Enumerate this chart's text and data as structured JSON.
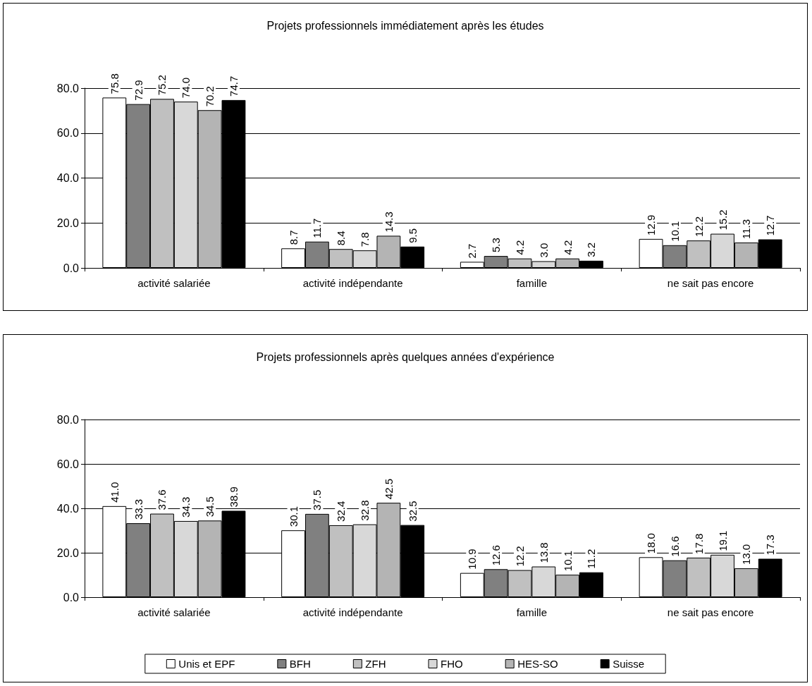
{
  "chart_data": [
    {
      "type": "bar",
      "title": "Projets professionnels immédiatement après les études",
      "categories": [
        "activité salariée",
        "activité indépendante",
        "famille",
        "ne sait pas encore"
      ],
      "ylim": [
        0,
        80
      ],
      "yticks": [
        {
          "value": 0,
          "label": "0.0"
        },
        {
          "value": 20,
          "label": "20.0"
        },
        {
          "value": 40,
          "label": "40.0"
        },
        {
          "value": 60,
          "label": "60.0"
        },
        {
          "value": 80,
          "label": "80.0"
        }
      ],
      "grid": "y",
      "legend": false,
      "series": [
        {
          "color": "#ffffff",
          "values": [
            75.8,
            8.7,
            2.7,
            12.9
          ],
          "value_labels": [
            "75.8",
            "8.7",
            "2.7",
            "12.9"
          ]
        },
        {
          "color": "#808080",
          "values": [
            72.9,
            11.7,
            5.3,
            10.1
          ],
          "value_labels": [
            "72.9",
            "11.7",
            "5.3",
            "10.1"
          ]
        },
        {
          "color": "#c0c0c0",
          "values": [
            75.2,
            8.4,
            4.2,
            12.2
          ],
          "value_labels": [
            "75.2",
            "8.4",
            "4.2",
            "12.2"
          ]
        },
        {
          "color": "#d8d8d8",
          "values": [
            74.0,
            7.8,
            3.0,
            15.2
          ],
          "value_labels": [
            "74.0",
            "7.8",
            "3.0",
            "15.2"
          ]
        },
        {
          "color": "#b4b4b4",
          "values": [
            70.2,
            14.3,
            4.2,
            11.3
          ],
          "value_labels": [
            "70.2",
            "14.3",
            "4.2",
            "11.3"
          ]
        },
        {
          "color": "#000000",
          "values": [
            74.7,
            9.5,
            3.2,
            12.7
          ],
          "value_labels": [
            "74.7",
            "9.5",
            "3.2",
            "12.7"
          ]
        }
      ]
    },
    {
      "type": "bar",
      "title": "Projets professionnels après quelques années d'expérience",
      "categories": [
        "activité salariée",
        "activité indépendante",
        "famille",
        "ne sait pas encore"
      ],
      "ylim": [
        0,
        80
      ],
      "yticks": [
        {
          "value": 0,
          "label": "0.0"
        },
        {
          "value": 20,
          "label": "20.0"
        },
        {
          "value": 40,
          "label": "40.0"
        },
        {
          "value": 60,
          "label": "60.0"
        },
        {
          "value": 80,
          "label": "80.0"
        }
      ],
      "grid": "y",
      "legend": "bottom",
      "series": [
        {
          "name": "Unis et EPF",
          "color": "#ffffff",
          "values": [
            41.0,
            30.1,
            10.9,
            18.0
          ],
          "value_labels": [
            "41.0",
            "30.1",
            "10.9",
            "18.0"
          ]
        },
        {
          "name": "BFH",
          "color": "#808080",
          "values": [
            33.3,
            37.5,
            12.6,
            16.6
          ],
          "value_labels": [
            "33.3",
            "37.5",
            "12.6",
            "16.6"
          ]
        },
        {
          "name": "ZFH",
          "color": "#c0c0c0",
          "values": [
            37.6,
            32.4,
            12.2,
            17.8
          ],
          "value_labels": [
            "37.6",
            "32.4",
            "12.2",
            "17.8"
          ]
        },
        {
          "name": "FHO",
          "color": "#d8d8d8",
          "values": [
            34.3,
            32.8,
            13.8,
            19.1
          ],
          "value_labels": [
            "34.3",
            "32.8",
            "13.8",
            "19.1"
          ]
        },
        {
          "name": "HES-SO",
          "color": "#b4b4b4",
          "values": [
            34.5,
            42.5,
            10.1,
            13.0
          ],
          "value_labels": [
            "34.5",
            "42.5",
            "10.1",
            "13.0"
          ]
        },
        {
          "name": "Suisse",
          "color": "#000000",
          "values": [
            38.9,
            32.5,
            11.2,
            17.3
          ],
          "value_labels": [
            "38.9",
            "32.5",
            "11.2",
            "17.3"
          ]
        }
      ]
    }
  ]
}
